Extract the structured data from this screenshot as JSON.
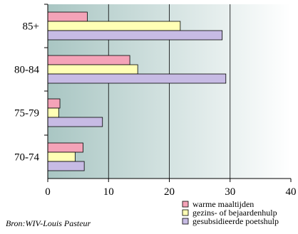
{
  "chart_data": {
    "type": "bar",
    "orientation": "horizontal",
    "categories": [
      "85+",
      "80-84",
      "75-79",
      "70-74"
    ],
    "series": [
      {
        "name": "warme maaltijden",
        "values": [
          6.5,
          13.5,
          2,
          5.8
        ],
        "color": "#f4a3b8"
      },
      {
        "name": "gezins- of bejaardenhulp",
        "values": [
          21.8,
          14.8,
          1.8,
          4.5
        ],
        "color": "#ffffb5"
      },
      {
        "name": "gesubsidieerde poetshulp",
        "values": [
          28.7,
          29.3,
          9,
          6
        ],
        "color": "#c7bbe4"
      }
    ],
    "xlim": [
      0,
      40
    ],
    "x_ticks": [
      "0",
      "10",
      "20",
      "30",
      "40"
    ],
    "xlabel": "",
    "ylabel": "",
    "title": "",
    "grid": true,
    "legend_position": "bottom-right",
    "background_gradient": [
      "#a9c6c3",
      "#ffffff"
    ]
  },
  "source_note": "Bron:WIV-Louis Pasteur"
}
